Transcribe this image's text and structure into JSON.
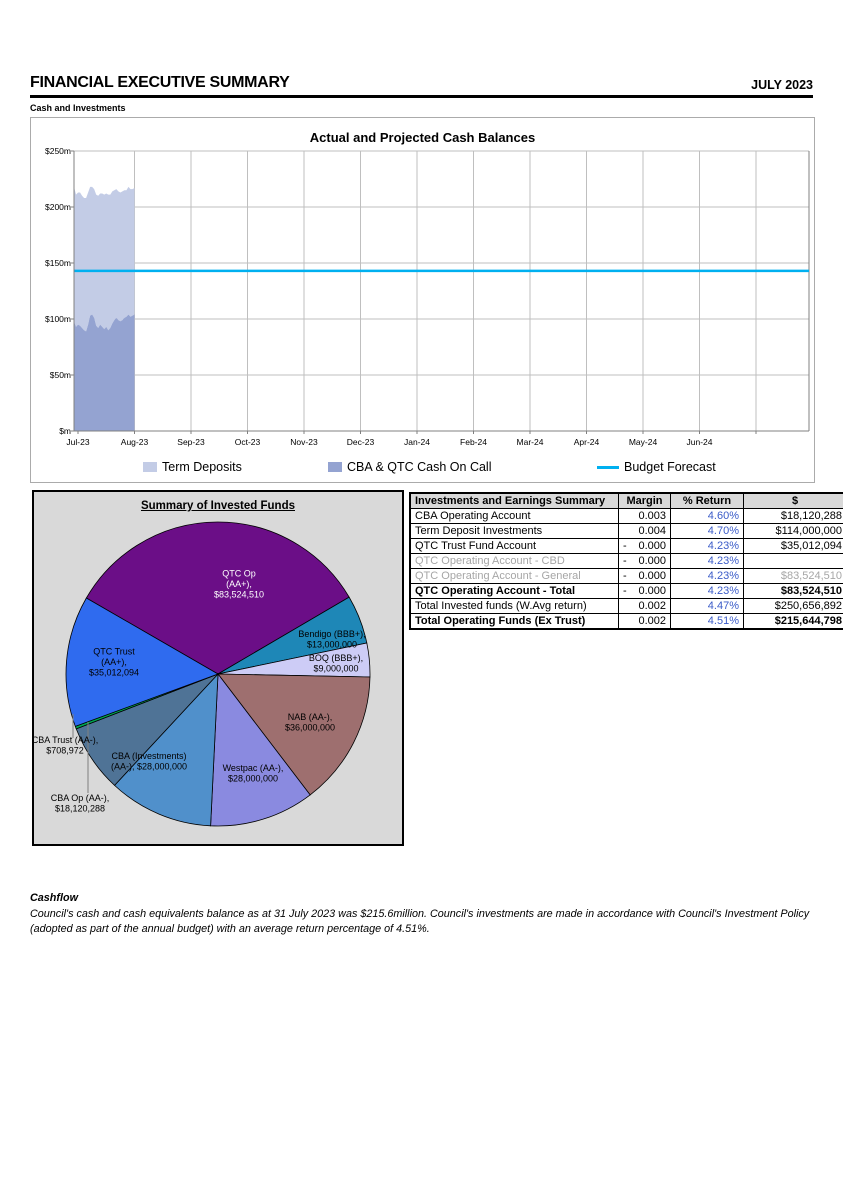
{
  "page": {
    "title": "FINANCIAL EXECUTIVE SUMMARY",
    "period": "JULY 2023",
    "section_label": "Cash and Investments"
  },
  "chart_data": [
    {
      "type": "area",
      "title": "Actual and Projected Cash Balances",
      "x_categories": [
        "Jul-23",
        "Aug-23",
        "Sep-23",
        "Oct-23",
        "Nov-23",
        "Dec-23",
        "Jan-24",
        "Feb-24",
        "Mar-24",
        "Apr-24",
        "May-24",
        "Jun-24"
      ],
      "y_tick_labels": [
        "$250m",
        "$200m",
        "$150m",
        "$100m",
        "$50m",
        "$m"
      ],
      "ylim": [
        0,
        250
      ],
      "grid": true,
      "legend_position": "bottom",
      "units": "$m",
      "actuals_span": "Jul-23 to Aug-23",
      "budget_forecast_value": 143,
      "series": [
        {
          "name": "Term Deposits",
          "color": "#c3cce6",
          "values": [
            120,
            118,
            118,
            119,
            118,
            118,
            119,
            118,
            115,
            114,
            115,
            117,
            118,
            117,
            119,
            120,
            119,
            121,
            119,
            118,
            116,
            115,
            115,
            115,
            115,
            114,
            113,
            114,
            114,
            113,
            113
          ]
        },
        {
          "name": "CBA & QTC Cash On Call",
          "color": "#94a3d1",
          "values": [
            98,
            93,
            95,
            94,
            92,
            90,
            89,
            95,
            103,
            104,
            101,
            94,
            92,
            95,
            93,
            91,
            93,
            90,
            92,
            96,
            99,
            101,
            99,
            98,
            99,
            101,
            102,
            104,
            102,
            103,
            104
          ]
        },
        {
          "name": "Budget Forecast",
          "color": "#00b0f0",
          "type": "line",
          "value": 143
        }
      ]
    },
    {
      "type": "pie",
      "title": "Summary of Invested Funds",
      "start_angle": 300,
      "slices": [
        {
          "name": "QTC Op",
          "lines": [
            "QTC Op",
            "(AA+),",
            "$83,524,510"
          ],
          "value": 83524510,
          "color": "#6b0e87",
          "text_color": "#ffffff",
          "label_pos": [
            205,
            92
          ]
        },
        {
          "name": "Bendigo",
          "lines": [
            "Bendigo (BBB+),",
            "$13,000,000"
          ],
          "value": 13000000,
          "color": "#1e87b7",
          "label_pos": [
            298,
            147
          ]
        },
        {
          "name": "BOQ",
          "lines": [
            "BOQ (BBB+),",
            "$9,000,000"
          ],
          "value": 9000000,
          "color": "#cdccf6",
          "label_pos": [
            302,
            171
          ]
        },
        {
          "name": "NAB",
          "lines": [
            "NAB (AA-),",
            "$36,000,000"
          ],
          "value": 36000000,
          "color": "#9e6f6f",
          "label_pos": [
            276,
            230
          ]
        },
        {
          "name": "Westpac",
          "lines": [
            "Westpac (AA-),",
            "$28,000,000"
          ],
          "value": 28000000,
          "color": "#8a8ae0",
          "label_pos": [
            219,
            281
          ]
        },
        {
          "name": "CBA (Investments)",
          "lines": [
            "CBA (Investments)",
            "(AA-), $28,000,000"
          ],
          "value": 28000000,
          "color": "#5090cb",
          "label_pos": [
            115,
            269
          ]
        },
        {
          "name": "CBA Op",
          "lines": [
            "CBA Op (AA-),",
            "$18,120,288"
          ],
          "value": 18120288,
          "color": "#4f7396",
          "label_pos": [
            46,
            311
          ],
          "outside": true,
          "leader": [
            [
              54,
              230
            ],
            [
              54,
              301
            ]
          ]
        },
        {
          "name": "CBA Trust",
          "lines": [
            "CBA Trust (AA-),",
            "$708,972"
          ],
          "value": 708972,
          "color": "#00a551",
          "label_pos": [
            31,
            253
          ],
          "outside": true,
          "leader": [
            [
              39,
              222
            ],
            [
              39,
              246
            ]
          ]
        },
        {
          "name": "QTC Trust",
          "lines": [
            "QTC Trust",
            "(AA+),",
            "$35,012,094"
          ],
          "value": 35012094,
          "color": "#2f6bef",
          "label_pos": [
            80,
            170
          ]
        }
      ]
    }
  ],
  "table": {
    "headers": [
      "Investments and Earnings Summary",
      "Margin",
      "% Return",
      "$"
    ],
    "return_color": "#3a5bc8",
    "rows": [
      {
        "label": "CBA Operating Account",
        "margin": "0.003",
        "return": "4.60%",
        "amount": "$18,120,288",
        "style": "normal"
      },
      {
        "label": "Term Deposit Investments",
        "margin": "0.004",
        "return": "4.70%",
        "amount": "$114,000,000",
        "style": "dashed"
      },
      {
        "label": "QTC Trust Fund Account",
        "margin": "- 0.000",
        "return": "4.23%",
        "amount": "$35,012,094",
        "style": "normal"
      },
      {
        "label": "QTC Operating Account - CBD",
        "margin": "- 0.000",
        "return": "4.23%",
        "amount": "",
        "style": "muted"
      },
      {
        "label": "QTC Operating Account - General",
        "margin": "- 0.000",
        "return": "4.23%",
        "amount": "$83,524,510",
        "style": "muted dashed"
      },
      {
        "label": "QTC Operating Account - Total",
        "margin": "- 0.000",
        "return": "4.23%",
        "amount": "$83,524,510",
        "style": "bold"
      },
      {
        "label": "Total Invested funds (W.Avg return)",
        "margin": "0.002",
        "return": "4.47%",
        "amount": "$250,656,892",
        "style": "normal"
      },
      {
        "label": "Total Operating Funds (Ex Trust)",
        "margin": "0.002",
        "return": "4.51%",
        "amount": "$215,644,798",
        "style": "bold"
      }
    ]
  },
  "cashflow": {
    "heading": "Cashflow",
    "line1": "Council's cash and cash equivalents balance as at 31 July 2023 was $215.6million. Council's investments are made in accordance with Council's Investment Policy",
    "line2": "(adopted as part of the annual budget) with an average return percentage of 4.51%."
  }
}
